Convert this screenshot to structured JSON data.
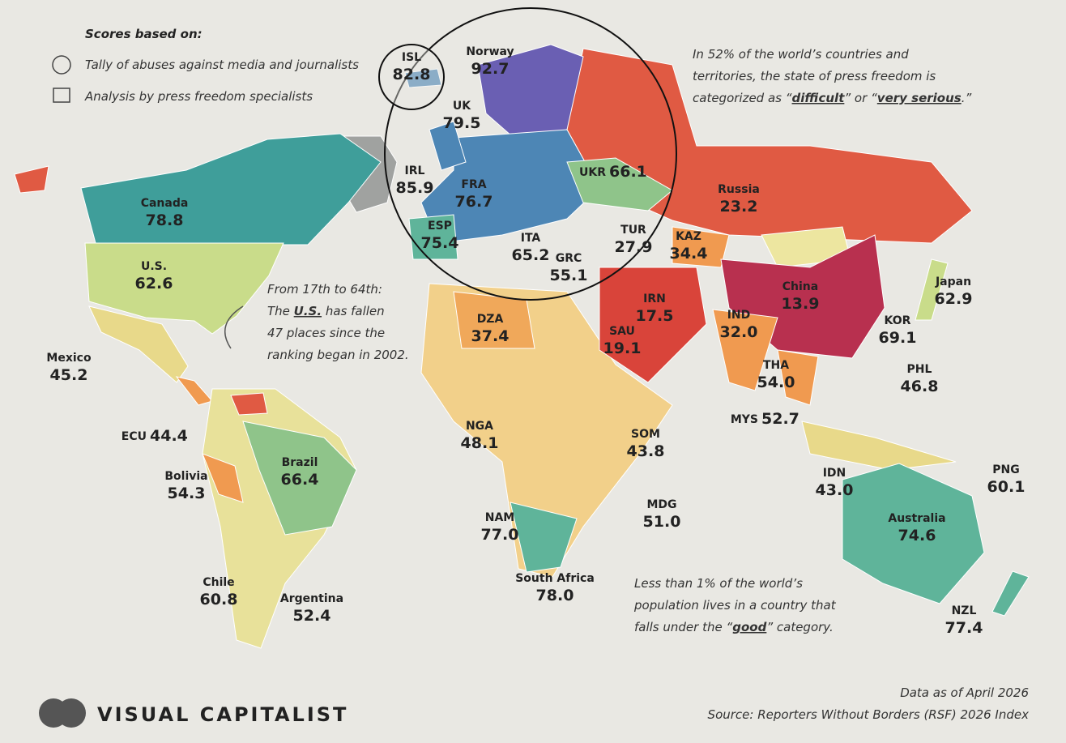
{
  "legend": {
    "title": "Scores based on:",
    "items": [
      "Tally of abuses against media and journalists",
      "Analysis by press freedom specialists"
    ]
  },
  "callouts": [
    {
      "lines": [
        [
          "In 52% of the world’s countries and"
        ],
        [
          "territories, the state of press freedom is"
        ],
        [
          "categorized as “",
          {
            "bold": "difficult"
          },
          "” or “",
          {
            "bold": "very serious"
          },
          ".”"
        ]
      ]
    },
    {
      "lines": [
        [
          "From 17th to 64th:"
        ],
        [
          "The ",
          {
            "bold": "U.S."
          },
          " has fallen"
        ],
        [
          "47 places since the"
        ],
        [
          "ranking began in 2002."
        ]
      ]
    },
    {
      "lines": [
        [
          "Less than 1% of the world’s"
        ],
        [
          "population lives in a country that"
        ],
        [
          "falls under the “",
          {
            "bold": "good"
          },
          "” category."
        ]
      ]
    }
  ],
  "countries": [
    {
      "label": "Norway",
      "score": "92.7"
    },
    {
      "label": "ISL",
      "score": "82.8"
    },
    {
      "label": "UK",
      "score": "79.5"
    },
    {
      "label": "IRL",
      "score": "85.9"
    },
    {
      "label": "FRA",
      "score": "76.7"
    },
    {
      "label": "UKR",
      "score": "66.1"
    },
    {
      "label": "ESP",
      "score": "75.4"
    },
    {
      "label": "ITA",
      "score": "65.2"
    },
    {
      "label": "GRC",
      "score": "55.1"
    },
    {
      "label": "TUR",
      "score": "27.9"
    },
    {
      "label": "Russia",
      "score": "23.2"
    },
    {
      "label": "KAZ",
      "score": "34.4"
    },
    {
      "label": "Canada",
      "score": "78.8"
    },
    {
      "label": "U.S.",
      "score": "62.6"
    },
    {
      "label": "Mexico",
      "score": "45.2"
    },
    {
      "label": "ECU",
      "score": "44.4"
    },
    {
      "label": "Bolivia",
      "score": "54.3"
    },
    {
      "label": "Brazil",
      "score": "66.4"
    },
    {
      "label": "Chile",
      "score": "60.8"
    },
    {
      "label": "Argentina",
      "score": "52.4"
    },
    {
      "label": "DZA",
      "score": "37.4"
    },
    {
      "label": "NGA",
      "score": "48.1"
    },
    {
      "label": "SOM",
      "score": "43.8"
    },
    {
      "label": "NAM",
      "score": "77.0"
    },
    {
      "label": "South Africa",
      "score": "78.0"
    },
    {
      "label": "MDG",
      "score": "51.0"
    },
    {
      "label": "SAU",
      "score": "19.1"
    },
    {
      "label": "IRN",
      "score": "17.5"
    },
    {
      "label": "China",
      "score": "13.9"
    },
    {
      "label": "IND",
      "score": "32.0"
    },
    {
      "label": "THA",
      "score": "54.0"
    },
    {
      "label": "MYS",
      "score": "52.7"
    },
    {
      "label": "Japan",
      "score": "62.9"
    },
    {
      "label": "KOR",
      "score": "69.1"
    },
    {
      "label": "PHL",
      "score": "46.8"
    },
    {
      "label": "IDN",
      "score": "43.0"
    },
    {
      "label": "PNG",
      "score": "60.1"
    },
    {
      "label": "Australia",
      "score": "74.6"
    },
    {
      "label": "NZL",
      "score": "77.4"
    }
  ],
  "footer": {
    "brand": "VISUAL CAPITALIST",
    "date": "Data as of April 2026",
    "source": "Source: Reporters Without Borders (RSF) 2026 Index"
  }
}
